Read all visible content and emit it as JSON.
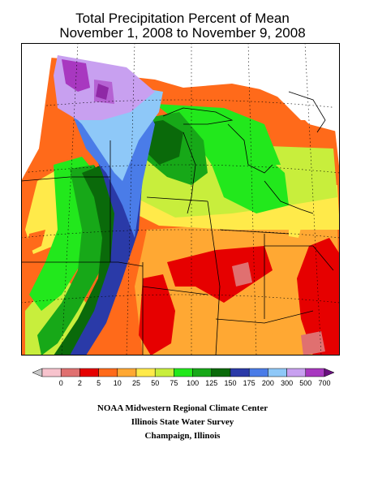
{
  "title": {
    "line1": "Total Precipitation Percent of Mean",
    "line2": "November 1, 2008 to November 9, 2008"
  },
  "legend": {
    "labels": [
      "0",
      "2",
      "5",
      "10",
      "25",
      "50",
      "75",
      "100",
      "125",
      "150",
      "175",
      "200",
      "300",
      "500",
      "700"
    ],
    "colors": [
      "#c8c8c8",
      "#f7c3cd",
      "#e07070",
      "#e60000",
      "#ff6a1a",
      "#ffa833",
      "#ffea4a",
      "#c8ee3c",
      "#22e81c",
      "#17a818",
      "#0a6a0a",
      "#2a3aa8",
      "#4a7ce8",
      "#8ec8f8",
      "#c8a0f0",
      "#a838c0",
      "#6a1080"
    ]
  },
  "map": {
    "colors": {
      "gray": "#c8c8c8",
      "pink": "#e07070",
      "red": "#e60000",
      "orange": "#ff6a1a",
      "lightorange": "#ffa833",
      "yellow": "#ffea4a",
      "yellowgreen": "#c8ee3c",
      "green": "#22e81c",
      "medgreen": "#17a818",
      "darkgreen": "#0a6a0a",
      "navy": "#2a3aa8",
      "blue": "#4a7ce8",
      "lightblue": "#8ec8f8",
      "lavender": "#c8a0f0",
      "purple": "#a838c0",
      "darkpurple": "#6a1080"
    }
  },
  "credits": {
    "line1": "NOAA Midwestern Regional Climate Center",
    "line2": "Illinois State Water Survey",
    "line3": "Champaign, Illinois"
  }
}
